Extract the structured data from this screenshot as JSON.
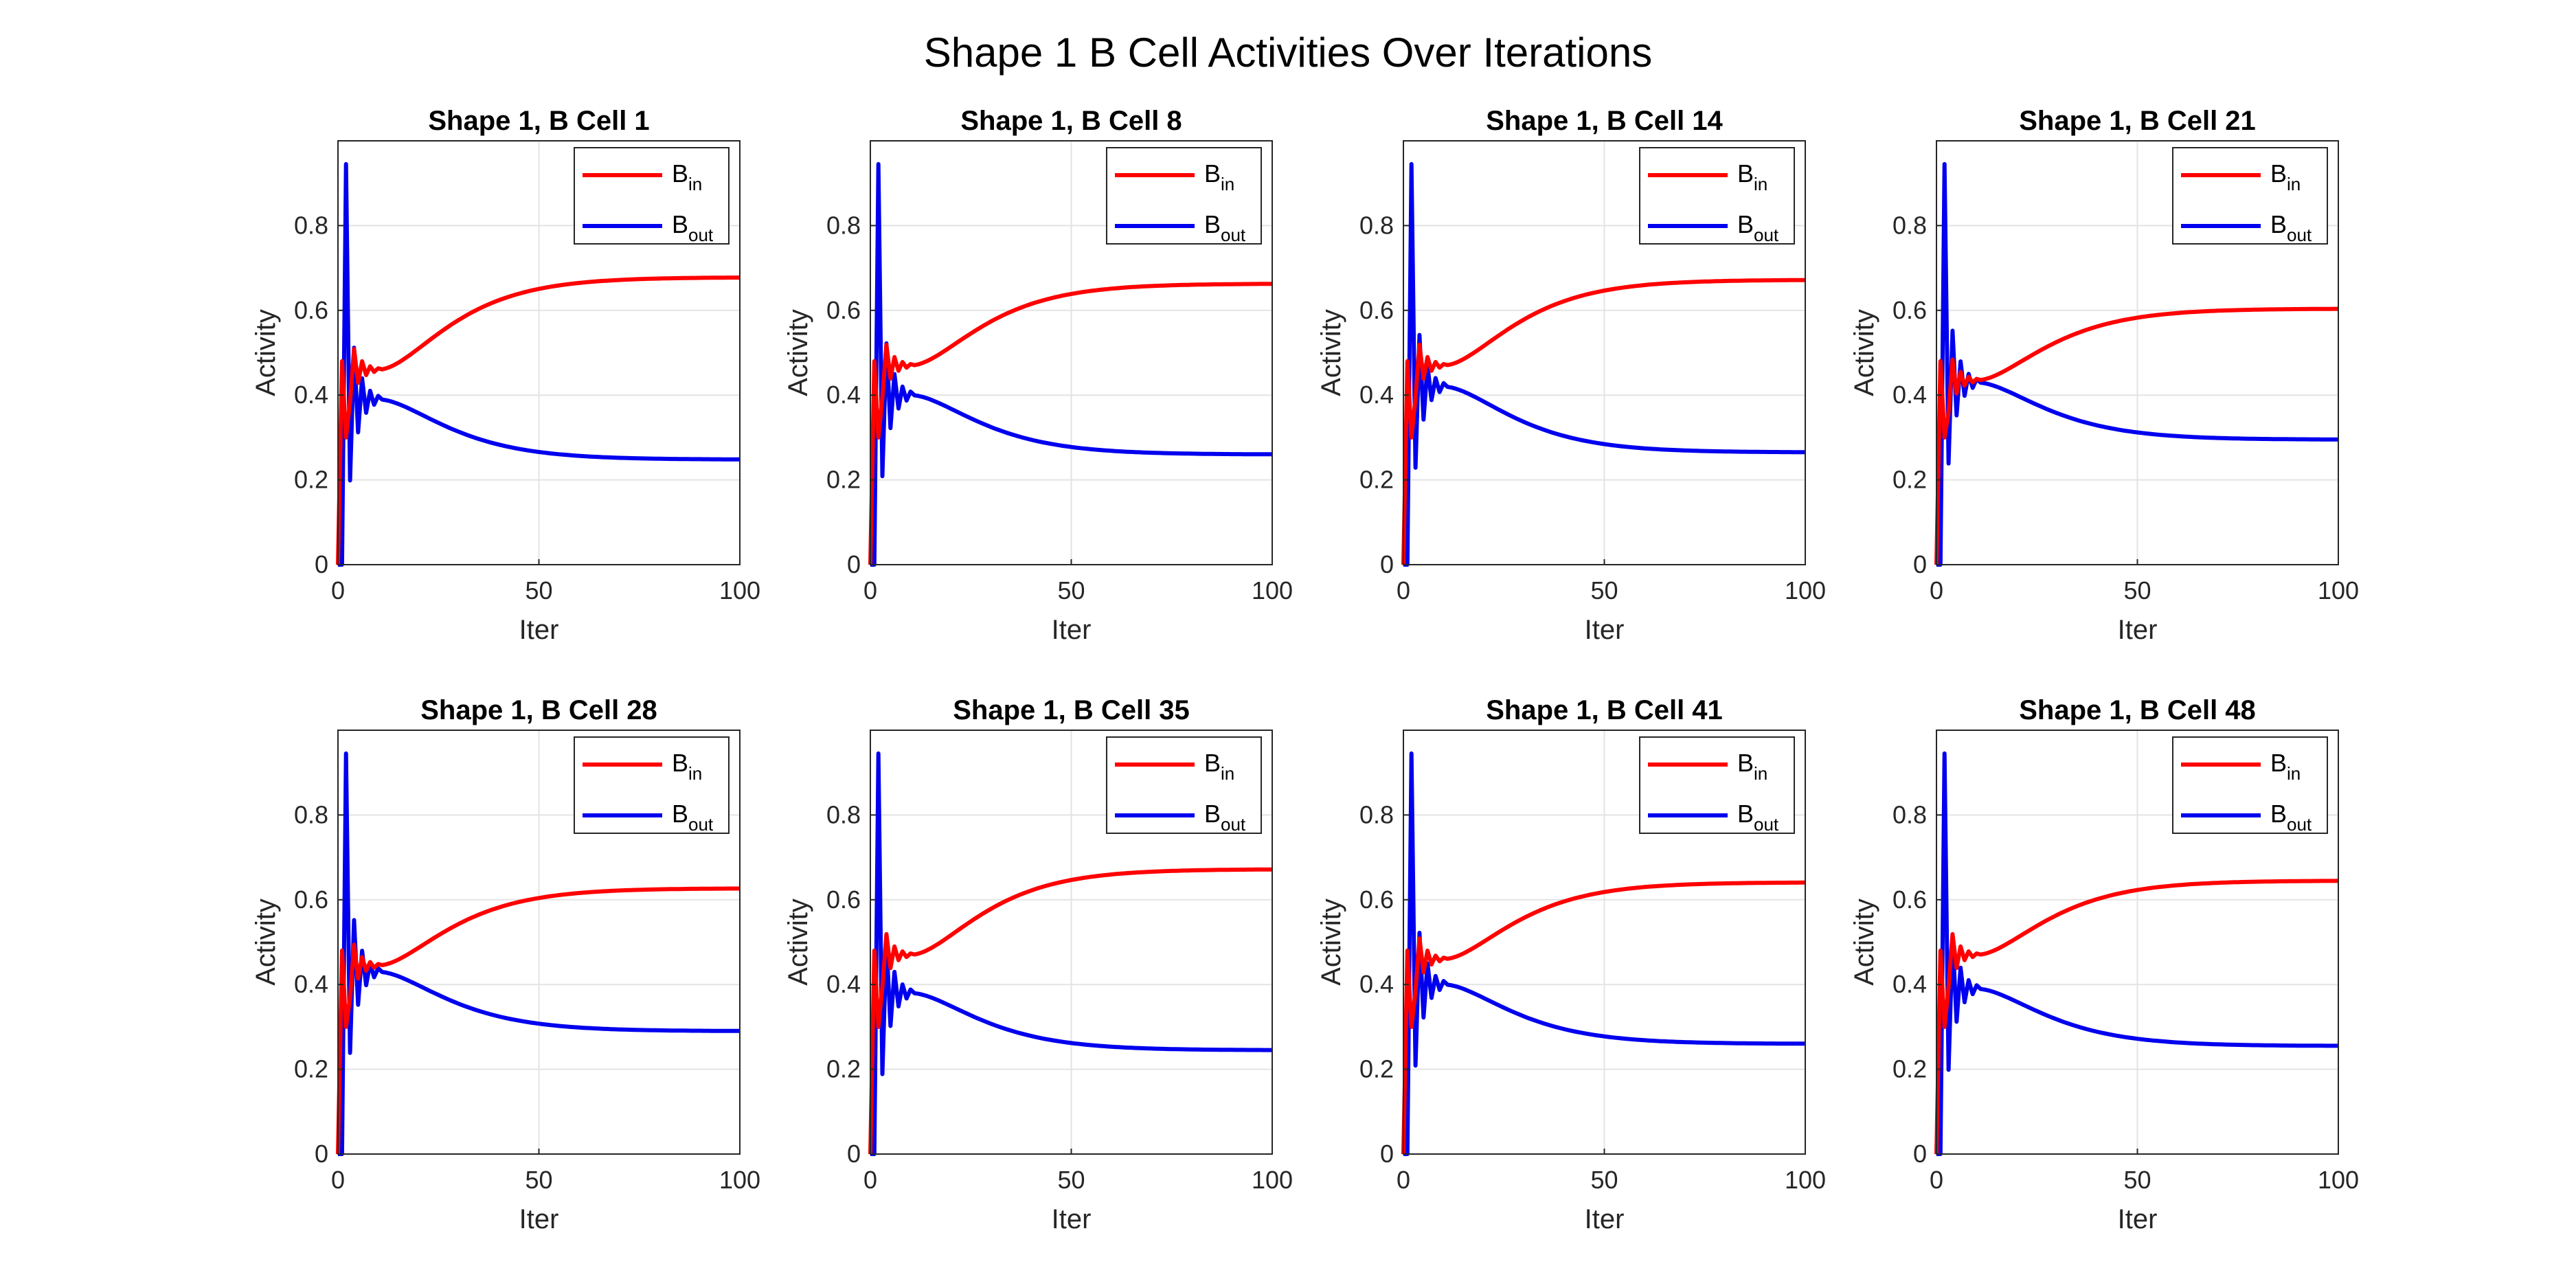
{
  "figure": {
    "title": "Shape 1 B Cell Activities Over Iterations"
  },
  "colors": {
    "b_in": "#ff0000",
    "b_out": "#0000ee",
    "grid": "#e3e3e3",
    "axis": "#262626"
  },
  "chart_data": [
    {
      "type": "line",
      "title": "Shape 1, B Cell 1",
      "xlabel": "Iter",
      "ylabel": "Activity",
      "xlim": [
        0,
        100
      ],
      "ylim": [
        0,
        1
      ],
      "xticks": [
        0,
        50,
        100
      ],
      "yticks": [
        0,
        0.2,
        0.4,
        0.6,
        0.8
      ],
      "grid": true,
      "legend_location": "top-right",
      "series": [
        {
          "name": "B",
          "subscript": "in",
          "color": "#ff0000",
          "final": 0.678,
          "dip": 0.46
        },
        {
          "name": "B",
          "subscript": "out",
          "color": "#0000ee",
          "final": 0.248,
          "dip": 0.39
        }
      ]
    },
    {
      "type": "line",
      "title": "Shape 1, B Cell 8",
      "xlabel": "Iter",
      "ylabel": "Activity",
      "xlim": [
        0,
        100
      ],
      "ylim": [
        0,
        1
      ],
      "xticks": [
        0,
        50,
        100
      ],
      "yticks": [
        0,
        0.2,
        0.4,
        0.6,
        0.8
      ],
      "grid": true,
      "legend_location": "top-right",
      "series": [
        {
          "name": "B",
          "subscript": "in",
          "color": "#ff0000",
          "final": 0.663,
          "dip": 0.47
        },
        {
          "name": "B",
          "subscript": "out",
          "color": "#0000ee",
          "final": 0.26,
          "dip": 0.4
        }
      ]
    },
    {
      "type": "line",
      "title": "Shape 1, B Cell 14",
      "xlabel": "Iter",
      "ylabel": "Activity",
      "xlim": [
        0,
        100
      ],
      "ylim": [
        0,
        1
      ],
      "xticks": [
        0,
        50,
        100
      ],
      "yticks": [
        0,
        0.2,
        0.4,
        0.6,
        0.8
      ],
      "grid": true,
      "legend_location": "top-right",
      "series": [
        {
          "name": "B",
          "subscript": "in",
          "color": "#ff0000",
          "final": 0.672,
          "dip": 0.47
        },
        {
          "name": "B",
          "subscript": "out",
          "color": "#0000ee",
          "final": 0.265,
          "dip": 0.42
        }
      ]
    },
    {
      "type": "line",
      "title": "Shape 1, B Cell 21",
      "xlabel": "Iter",
      "ylabel": "Activity",
      "xlim": [
        0,
        100
      ],
      "ylim": [
        0,
        1
      ],
      "xticks": [
        0,
        50,
        100
      ],
      "yticks": [
        0,
        0.2,
        0.4,
        0.6,
        0.8
      ],
      "grid": true,
      "legend_location": "top-right",
      "series": [
        {
          "name": "B",
          "subscript": "in",
          "color": "#ff0000",
          "final": 0.604,
          "dip": 0.435
        },
        {
          "name": "B",
          "subscript": "out",
          "color": "#0000ee",
          "final": 0.295,
          "dip": 0.43
        }
      ]
    },
    {
      "type": "line",
      "title": "Shape 1, B Cell 28",
      "xlabel": "Iter",
      "ylabel": "Activity",
      "xlim": [
        0,
        100
      ],
      "ylim": [
        0,
        1
      ],
      "xticks": [
        0,
        50,
        100
      ],
      "yticks": [
        0,
        0.2,
        0.4,
        0.6,
        0.8
      ],
      "grid": true,
      "legend_location": "top-right",
      "series": [
        {
          "name": "B",
          "subscript": "in",
          "color": "#ff0000",
          "final": 0.627,
          "dip": 0.445
        },
        {
          "name": "B",
          "subscript": "out",
          "color": "#0000ee",
          "final": 0.29,
          "dip": 0.43
        }
      ]
    },
    {
      "type": "line",
      "title": "Shape 1, B Cell 35",
      "xlabel": "Iter",
      "ylabel": "Activity",
      "xlim": [
        0,
        100
      ],
      "ylim": [
        0,
        1
      ],
      "xticks": [
        0,
        50,
        100
      ],
      "yticks": [
        0,
        0.2,
        0.4,
        0.6,
        0.8
      ],
      "grid": true,
      "legend_location": "top-right",
      "series": [
        {
          "name": "B",
          "subscript": "in",
          "color": "#ff0000",
          "final": 0.672,
          "dip": 0.47
        },
        {
          "name": "B",
          "subscript": "out",
          "color": "#0000ee",
          "final": 0.245,
          "dip": 0.38
        }
      ]
    },
    {
      "type": "line",
      "title": "Shape 1, B Cell 41",
      "xlabel": "Iter",
      "ylabel": "Activity",
      "xlim": [
        0,
        100
      ],
      "ylim": [
        0,
        1
      ],
      "xticks": [
        0,
        50,
        100
      ],
      "yticks": [
        0,
        0.2,
        0.4,
        0.6,
        0.8
      ],
      "grid": true,
      "legend_location": "top-right",
      "series": [
        {
          "name": "B",
          "subscript": "in",
          "color": "#ff0000",
          "final": 0.641,
          "dip": 0.46
        },
        {
          "name": "B",
          "subscript": "out",
          "color": "#0000ee",
          "final": 0.26,
          "dip": 0.4
        }
      ]
    },
    {
      "type": "line",
      "title": "Shape 1, B Cell 48",
      "xlabel": "Iter",
      "ylabel": "Activity",
      "xlim": [
        0,
        100
      ],
      "ylim": [
        0,
        1
      ],
      "xticks": [
        0,
        50,
        100
      ],
      "yticks": [
        0,
        0.2,
        0.4,
        0.6,
        0.8
      ],
      "grid": true,
      "legend_location": "top-right",
      "series": [
        {
          "name": "B",
          "subscript": "in",
          "color": "#ff0000",
          "final": 0.645,
          "dip": 0.47
        },
        {
          "name": "B",
          "subscript": "out",
          "color": "#0000ee",
          "final": 0.255,
          "dip": 0.39
        }
      ]
    }
  ]
}
